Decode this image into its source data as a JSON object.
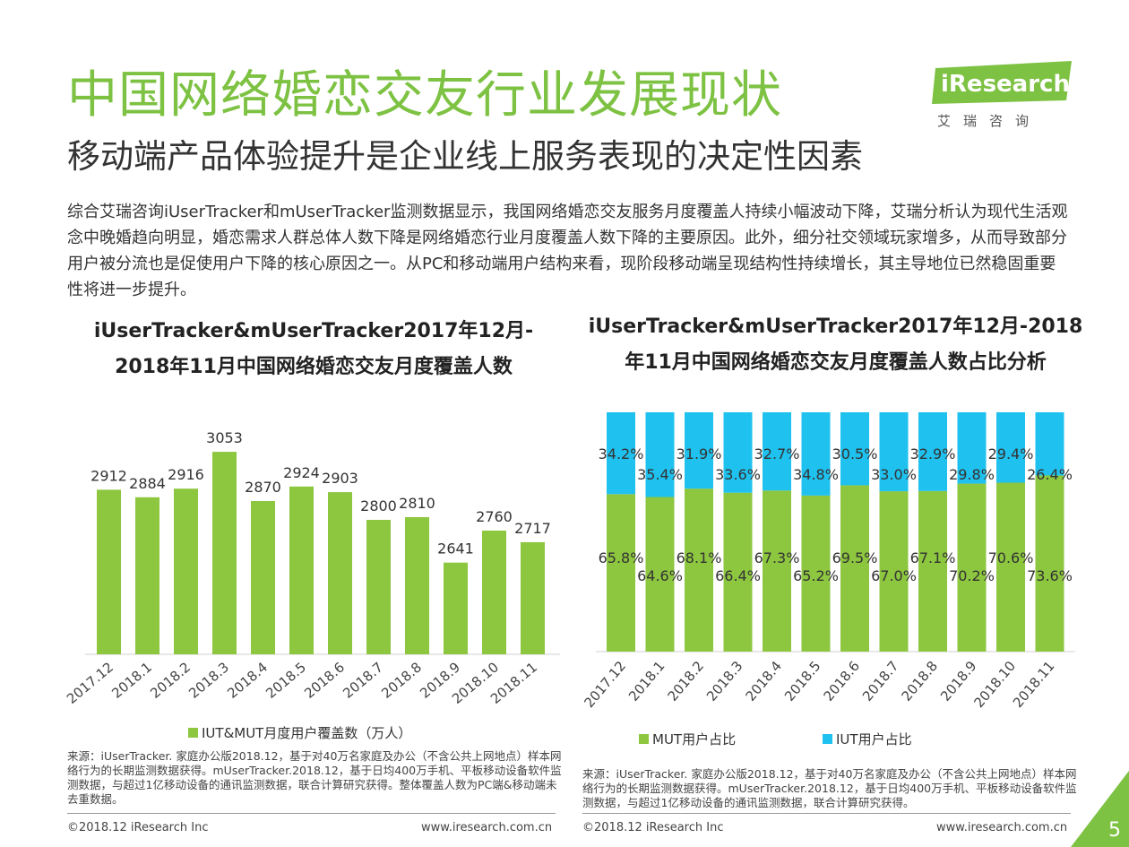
{
  "header": {
    "title": "中国网络婚恋交友行业发展现状",
    "subtitle": "移动端产品体验提升是企业线上服务表现的决定性因素",
    "logo_text": "iResearch",
    "logo_sub": "艾瑞咨询"
  },
  "intro": "综合艾瑞咨询iUserTracker和mUserTracker监测数据显示，我国网络婚恋交友服务月度覆盖人持续小幅波动下降，艾瑞分析认为现代生活观念中晚婚趋向明显，婚恋需求人群总体人数下降是网络婚恋行业月度覆盖人数下降的主要原因。此外，细分社交领域玩家增多，从而导致部分用户被分流也是促使用户下降的核心原因之一。从PC和移动端用户结构来看，现阶段移动端呈现结构性持续增长，其主导地位已然稳固重要性将进一步提升。",
  "left_chart_title_1": "iUserTracker&mUserTracker2017年12月-",
  "left_chart_title_2": "2018年11月中国网络婚恋交友月度覆盖人数",
  "right_chart_title_1": "iUserTracker&mUserTracker2017年12月-2018",
  "right_chart_title_2": "年11月中国网络婚恋交友月度覆盖人数占比分析",
  "chart_data": [
    {
      "type": "bar",
      "title": "iUserTracker&mUserTracker2017年12月-2018年11月中国网络婚恋交友月度覆盖人数",
      "categories": [
        "2017.12",
        "2018.1",
        "2018.2",
        "2018.3",
        "2018.4",
        "2018.5",
        "2018.6",
        "2018.7",
        "2018.8",
        "2018.9",
        "2018.10",
        "2018.11"
      ],
      "series": [
        {
          "name": "IUT&MUT月度用户覆盖数（万人）",
          "values": [
            2912,
            2884,
            2916,
            3053,
            2870,
            2924,
            2903,
            2800,
            2810,
            2641,
            2760,
            2717
          ],
          "color": "#8dc63f"
        }
      ],
      "ylim": [
        2300,
        3100
      ],
      "grid": false,
      "legend": "bottom"
    },
    {
      "type": "bar",
      "stacked": true,
      "title": "iUserTracker&mUserTracker2017年12月-2018年11月中国网络婚恋交友月度覆盖人数占比分析",
      "categories": [
        "2017.12",
        "2018.1",
        "2018.2",
        "2018.3",
        "2018.4",
        "2018.5",
        "2018.6",
        "2018.7",
        "2018.8",
        "2018.9",
        "2018.10",
        "2018.11"
      ],
      "series": [
        {
          "name": "MUT用户占比",
          "values": [
            65.8,
            64.6,
            68.1,
            66.4,
            67.3,
            65.2,
            69.5,
            67.0,
            67.1,
            70.2,
            70.6,
            73.6
          ],
          "labels": [
            "65.8%",
            "64.6%",
            "68.1%",
            "66.4%",
            "67.3%",
            "65.2%",
            "69.5%",
            "67.0%",
            "67.1%",
            "70.2%",
            "70.6%",
            "73.6%"
          ],
          "color": "#8dc63f"
        },
        {
          "name": "IUT用户占比",
          "values": [
            34.2,
            35.4,
            31.9,
            33.6,
            32.7,
            34.8,
            30.5,
            33.0,
            32.9,
            29.8,
            29.4,
            26.4
          ],
          "labels": [
            "34.2%",
            "35.4%",
            "31.9%",
            "33.6%",
            "32.7%",
            "34.8%",
            "30.5%",
            "33.0%",
            "32.9%",
            "29.8%",
            "29.4%",
            "26.4%"
          ],
          "color": "#1fc1ef"
        }
      ],
      "ylim": [
        0,
        100
      ],
      "grid": false,
      "legend": "bottom"
    }
  ],
  "left_source": "来源：iUserTracker. 家庭办公版2018.12，基于对40万名家庭及办公（不含公共上网地点）样本网络行为的长期监测数据获得。mUserTracker.2018.12，基于日均400万手机、平板移动设备软件监测数据，与超过1亿移动设备的通讯监测数据，联合计算研究获得。整体覆盖人数为PC端&移动端未去重数据。",
  "right_source": "来源：iUserTracker. 家庭办公版2018.12，基于对40万名家庭及办公（不含公共上网地点）样本网络行为的长期监测数据获得。mUserTracker.2018.12，基于日均400万手机、平板移动设备软件监测数据，与超过1亿移动设备的通讯监测数据，联合计算研究获得。",
  "footer": {
    "left_copyright": "©2018.12 iResearch Inc",
    "left_url": "www.iresearch.com.cn",
    "right_copyright": "©2018.12 iResearch Inc",
    "right_url": "www.iresearch.com.cn",
    "page_number": "5"
  }
}
